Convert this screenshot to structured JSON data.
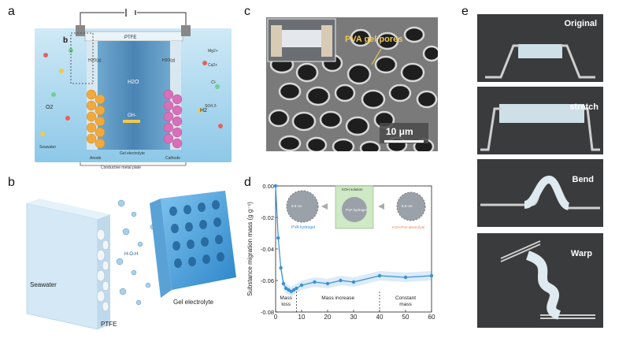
{
  "panels": {
    "a": {
      "letter": "a",
      "sub_letter": "b",
      "labels": {
        "ptfe": "PTFE",
        "h2o_left": "H2O(g)",
        "h2o_right": "H2O(g)",
        "h2o_center": "H2O",
        "oh": "OH-",
        "o2": "O2",
        "h2": "H2",
        "mg": "Mg2+",
        "ca": "Ca2+",
        "cl": "Cl-",
        "so4": "SO4 2-",
        "seawater": "Seawater",
        "anode": "Anode",
        "gel": "Gel electrolyte",
        "cathode": "Cathode",
        "metal_plate": "Conductive metal plate"
      }
    },
    "b": {
      "letter": "b",
      "labels": {
        "seawater": "Seawater",
        "ptfe": "PTFE",
        "gel": "Gel electrolyte",
        "h2o": "H-O-H"
      }
    },
    "c": {
      "letter": "c",
      "pores_label": "PVA gel pores",
      "scale_bar": "10 μm"
    },
    "d": {
      "letter": "d",
      "inset": {
        "left_dim": "9.9 cm",
        "left_name": "PVA hydrogel",
        "center_top": "KOH solution",
        "center_name": "PVA hydrogel",
        "right_dim": "8.6 cm",
        "right_name": "KOH-PVA electrolyte"
      },
      "regions": [
        "Mass\nloss",
        "Mass increase",
        "Constant\nmass"
      ]
    },
    "e": {
      "letter": "e",
      "photos": [
        "Original",
        "stretch",
        "Bend",
        "Warp"
      ]
    }
  },
  "chart_data": {
    "type": "line",
    "title": "",
    "xlabel": "",
    "ylabel": "Substance migration mass (g g⁻¹)",
    "xlim": [
      0,
      60
    ],
    "ylim": [
      -0.08,
      0.0
    ],
    "x_ticks": [
      0,
      10,
      20,
      30,
      40,
      50,
      60
    ],
    "y_ticks": [
      0.0,
      -0.02,
      -0.04,
      -0.06,
      -0.08
    ],
    "y_tick_labels": [
      "0.00",
      "-0.02",
      "-0.04",
      "-0.06",
      "-0.08"
    ],
    "region_dividers": [
      8,
      40
    ],
    "region_labels": [
      "Mass loss",
      "Mass increase",
      "Constant mass"
    ],
    "series": [
      {
        "color": "#3a8fd6",
        "points": [
          {
            "x": 0,
            "y": 0.0
          },
          {
            "x": 1,
            "y": -0.033
          },
          {
            "x": 2,
            "y": -0.052
          },
          {
            "x": 3,
            "y": -0.062
          },
          {
            "x": 4,
            "y": -0.065
          },
          {
            "x": 5,
            "y": -0.066
          },
          {
            "x": 6,
            "y": -0.067
          },
          {
            "x": 7,
            "y": -0.066
          },
          {
            "x": 8,
            "y": -0.065
          },
          {
            "x": 10,
            "y": -0.063
          },
          {
            "x": 15,
            "y": -0.061
          },
          {
            "x": 20,
            "y": -0.062
          },
          {
            "x": 25,
            "y": -0.06
          },
          {
            "x": 30,
            "y": -0.061
          },
          {
            "x": 40,
            "y": -0.057
          },
          {
            "x": 50,
            "y": -0.058
          },
          {
            "x": 60,
            "y": -0.057
          }
        ]
      }
    ]
  }
}
